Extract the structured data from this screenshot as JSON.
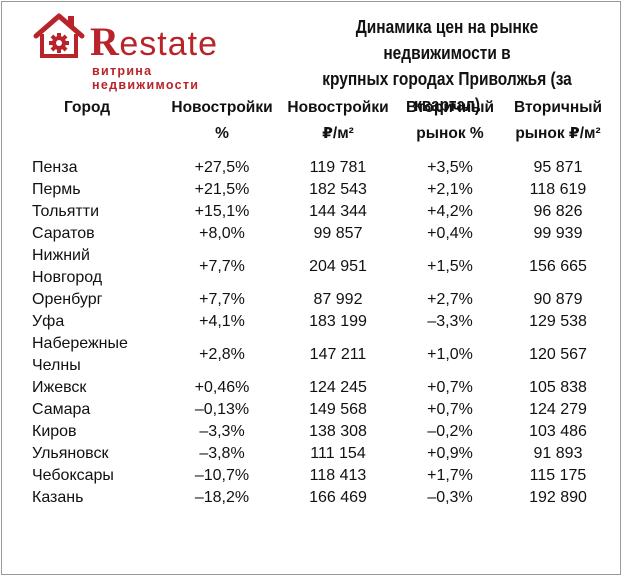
{
  "logo": {
    "brand_letter": "R",
    "brand_rest": "estate",
    "tagline": "витрина недвижимости",
    "house_icon": "house-gear-icon",
    "accent_color": "#b8242a"
  },
  "title": {
    "line1": "Динамика цен на рынке недвижимости в",
    "line2": "крупных городах Приволжья (за квартал)"
  },
  "table": {
    "headers": [
      {
        "line1": "Город",
        "line2": ""
      },
      {
        "line1": "Новостройки",
        "line2": "%"
      },
      {
        "line1": "Новостройки",
        "line2": "₽/м²"
      },
      {
        "line1": "Вторичный",
        "line2": "рынок %"
      },
      {
        "line1": "Вторичный",
        "line2": "рынок ₽/м²"
      }
    ],
    "rows": [
      [
        "Пенза",
        "+27,5%",
        "119 781",
        "+3,5%",
        "95 871"
      ],
      [
        "Пермь",
        "+21,5%",
        "182 543",
        "+2,1%",
        "118 619"
      ],
      [
        "Тольятти",
        "+15,1%",
        "144 344",
        "+4,2%",
        "96 826"
      ],
      [
        "Саратов",
        "+8,0%",
        "99 857",
        "+0,4%",
        "99 939"
      ],
      [
        "Нижний Новгород",
        "+7,7%",
        "204 951",
        "+1,5%",
        "156 665"
      ],
      [
        "Оренбург",
        "+7,7%",
        "87 992",
        "+2,7%",
        "90 879"
      ],
      [
        "Уфа",
        "+4,1%",
        "183 199",
        "–3,3%",
        "129 538"
      ],
      [
        "Набережные Челны",
        "+2,8%",
        "147 211",
        "+1,0%",
        "120 567"
      ],
      [
        "Ижевск",
        "+0,46%",
        "124 245",
        "+0,7%",
        "105 838"
      ],
      [
        "Самара",
        "–0,13%",
        "149 568",
        "+0,7%",
        "124 279"
      ],
      [
        "Киров",
        "–3,3%",
        "138 308",
        "–0,2%",
        "103 486"
      ],
      [
        "Ульяновск",
        "–3,8%",
        "111 154",
        "+0,9%",
        "91 893"
      ],
      [
        "Чебоксары",
        "–10,7%",
        "118 413",
        "+1,7%",
        "115 175"
      ],
      [
        "Казань",
        "–18,2%",
        "166 469",
        "–0,3%",
        "192 890"
      ]
    ]
  }
}
